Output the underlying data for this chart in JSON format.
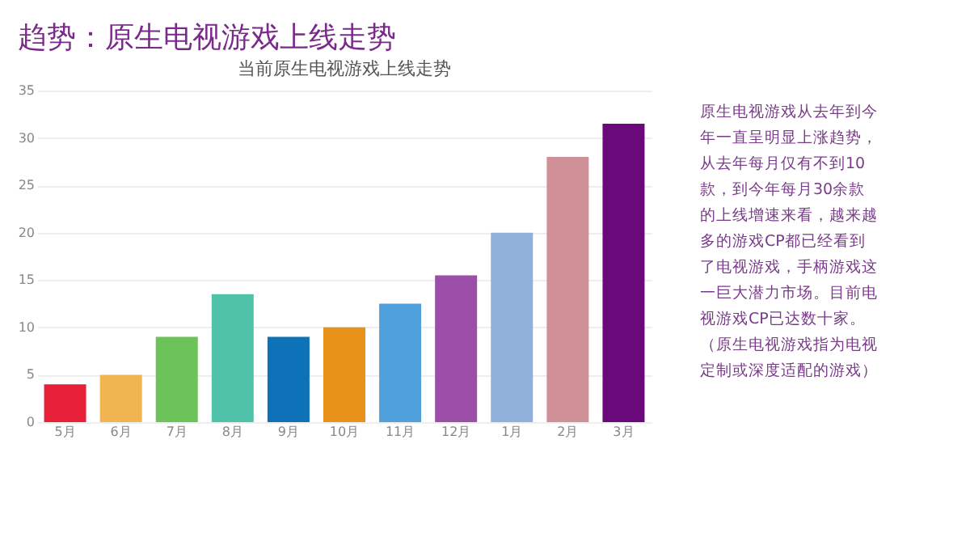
{
  "chart_data": {
    "type": "bar",
    "title": "当前原生电视游戏上线走势",
    "categories": [
      "5月",
      "6月",
      "7月",
      "8月",
      "9月",
      "10月",
      "11月",
      "12月",
      "1月",
      "2月",
      "3月"
    ],
    "values": [
      4,
      5,
      9,
      13.5,
      9,
      10,
      12.5,
      15.5,
      20,
      28,
      31.5
    ],
    "colors": [
      "#e8203a",
      "#f0b550",
      "#6cc35a",
      "#4fc3a8",
      "#0e72b8",
      "#e8921a",
      "#4fa0dc",
      "#9b4fa8",
      "#8fb0d8",
      "#d09098",
      "#6a0a7a"
    ],
    "ylim": [
      0,
      35
    ],
    "yticks": [
      0,
      5,
      10,
      15,
      20,
      25,
      30,
      35
    ],
    "grid": "y",
    "annotations": [
      "趋势：原生电视游戏上线走势",
      "原生电视游戏从去年到今年一直呈明显上涨趋势，从去年每月仅有不到10款，到今年每月30余款的上线增速来看，越来越多的游戏CP都已经看到了电视游戏，手柄游戏这一巨大潜力市场。目前电视游戏CP已达数十家。（原生电视游戏指为电视定制或深度适配的游戏）"
    ]
  }
}
